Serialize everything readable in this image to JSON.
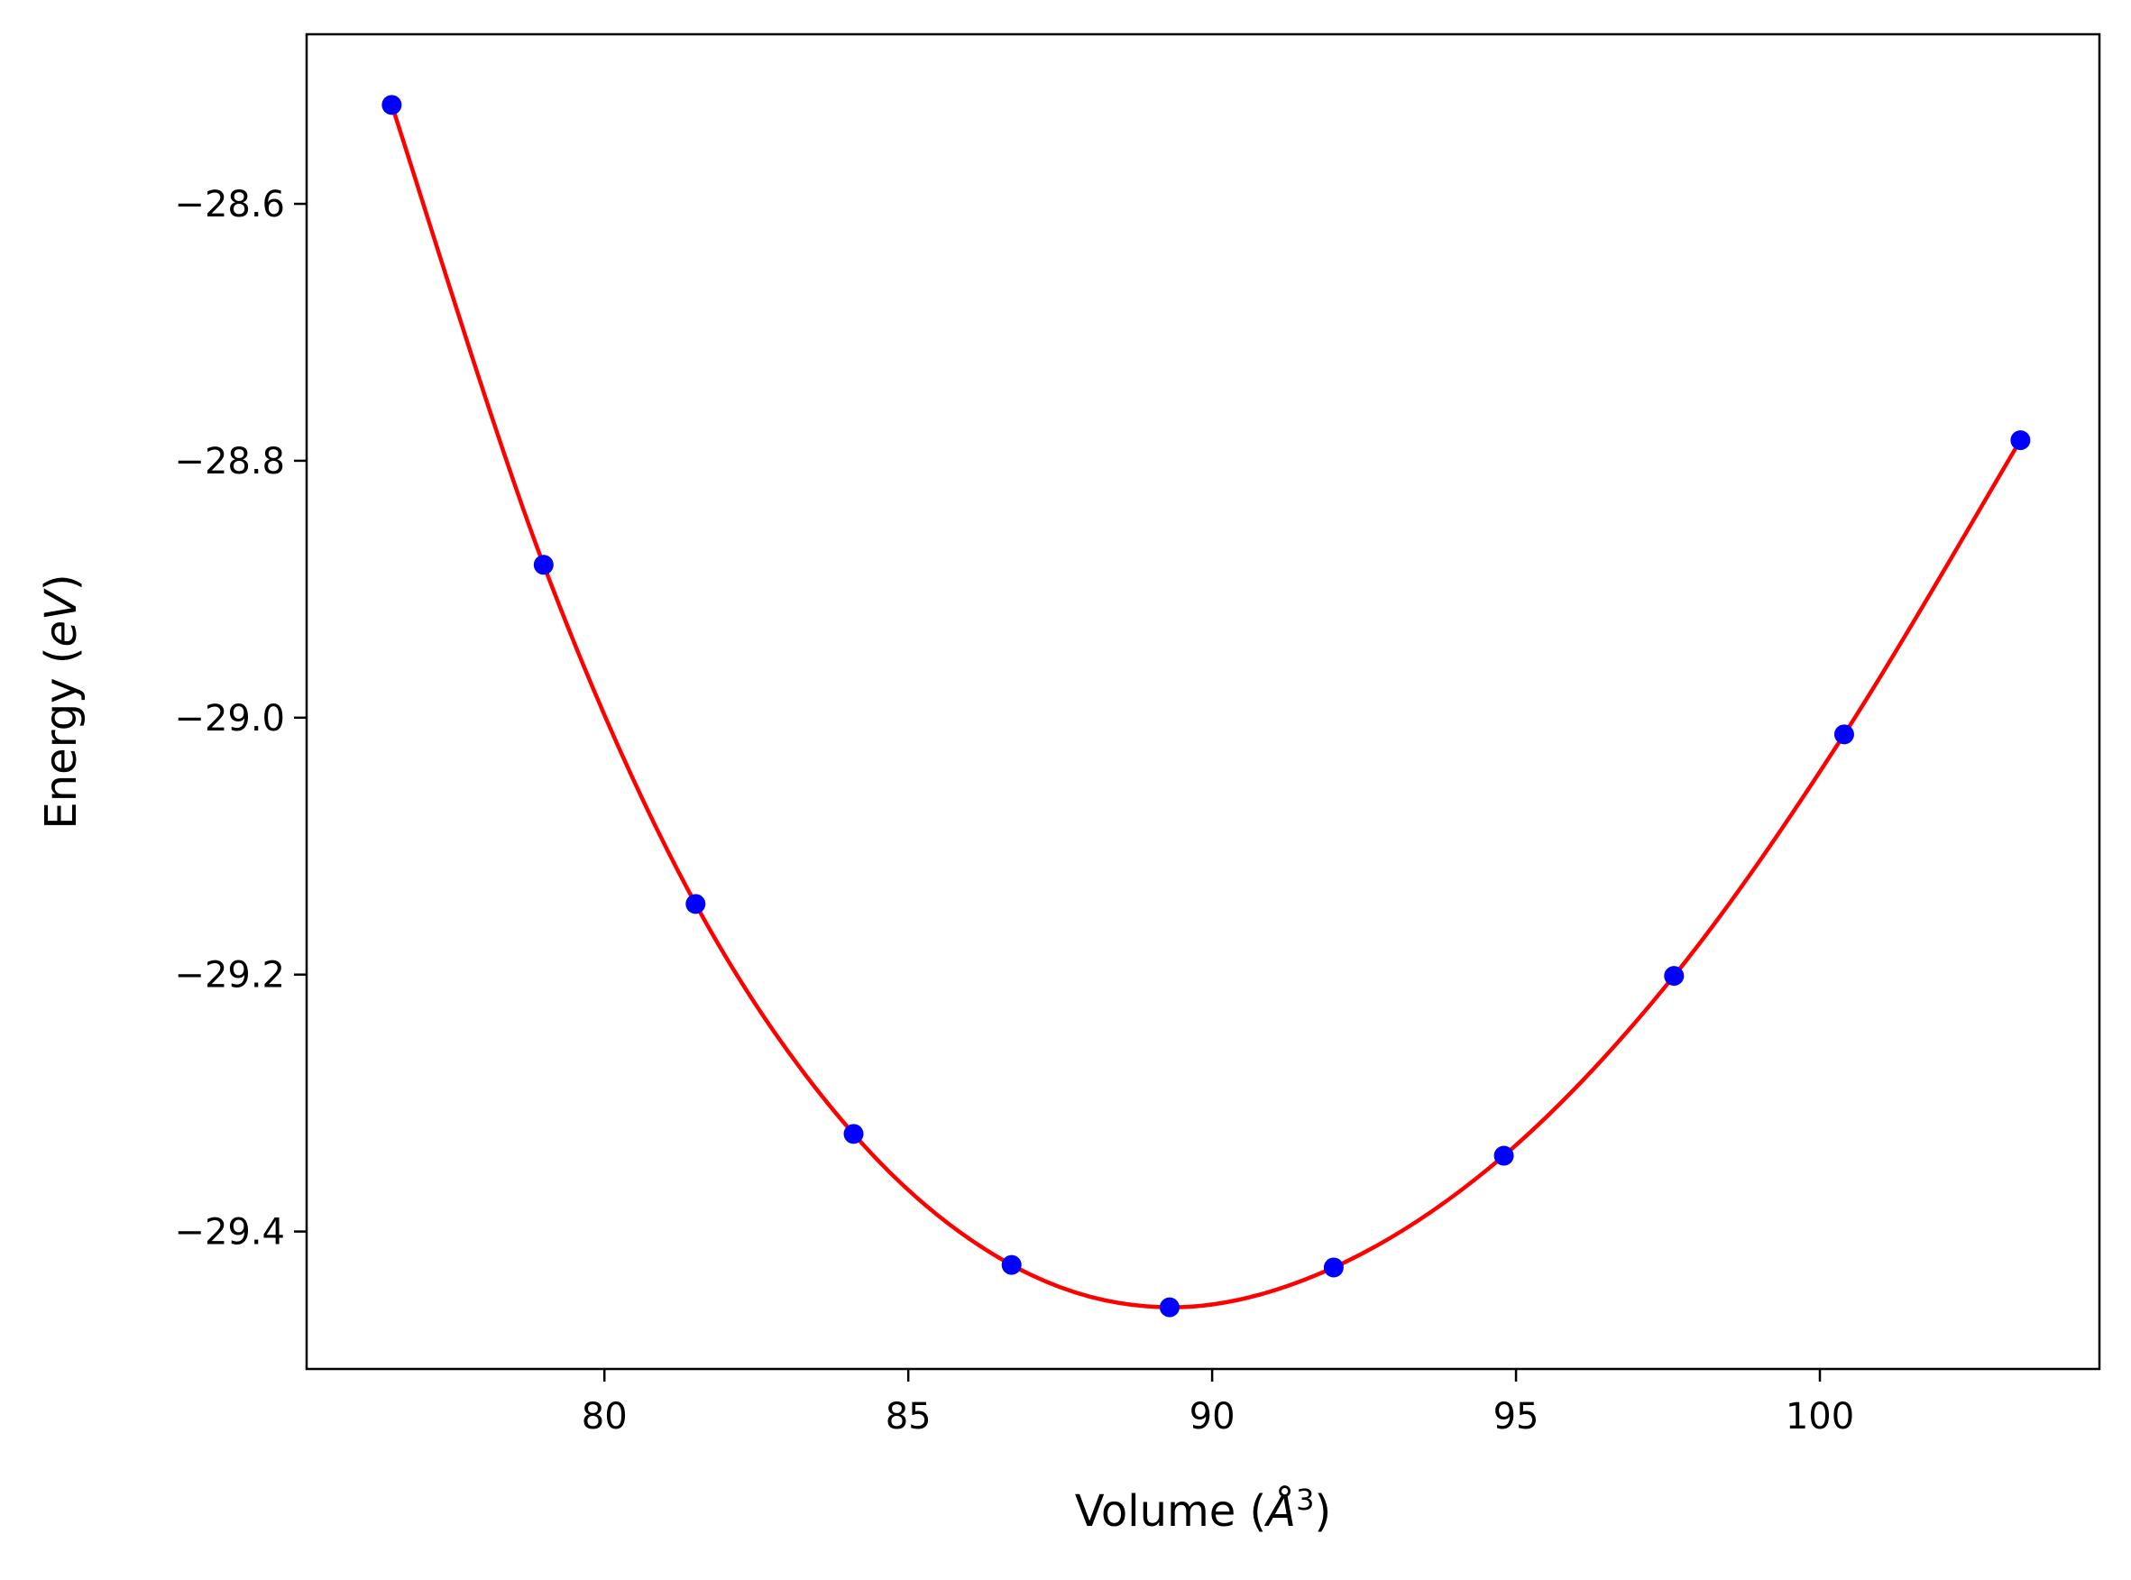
{
  "chart_data": {
    "type": "line",
    "xlabel_prefix": "Volume (",
    "xlabel_unit": "Å",
    "xlabel_sup": "3",
    "xlabel_suffix": ")",
    "ylabel_prefix": "Energy (",
    "ylabel_unit": "eV",
    "ylabel_suffix": ")",
    "xlim": [
      75.1,
      104.6
    ],
    "ylim": [
      -29.507,
      -28.468
    ],
    "xticks": [
      80,
      85,
      90,
      95,
      100
    ],
    "xtick_labels": [
      "80",
      "85",
      "90",
      "95",
      "100"
    ],
    "yticks": [
      -28.6,
      -28.8,
      -29.0,
      -29.2,
      -29.4
    ],
    "ytick_labels": [
      "−28.6",
      "−28.8",
      "−29.0",
      "−29.2",
      "−29.4"
    ],
    "grid": false,
    "series": [
      {
        "kind": "points",
        "color": "#0000ff",
        "x": [
          76.5,
          79.0,
          81.5,
          84.1,
          86.7,
          89.3,
          92.0,
          94.8,
          97.6,
          100.4,
          103.3
        ],
        "y": [
          -28.523,
          -28.881,
          -29.145,
          -29.324,
          -29.426,
          -29.459,
          -29.428,
          -29.341,
          -29.201,
          -29.013,
          -28.784
        ]
      },
      {
        "kind": "fit",
        "color": "#ff0000",
        "x": [
          76.5,
          79.0,
          81.5,
          84.1,
          86.7,
          89.3,
          92.0,
          94.8,
          97.6,
          100.4,
          103.3
        ],
        "y": [
          -28.523,
          -28.881,
          -29.145,
          -29.324,
          -29.426,
          -29.459,
          -29.428,
          -29.341,
          -29.201,
          -29.013,
          -28.784
        ]
      }
    ]
  }
}
